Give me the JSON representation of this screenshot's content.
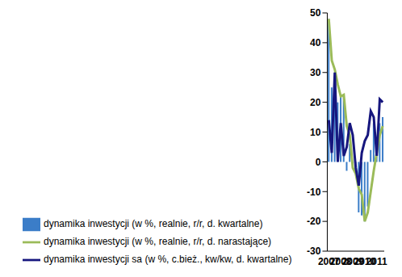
{
  "chart_data": {
    "type": "bar",
    "categories": [
      "2007",
      null,
      null,
      null,
      "2008",
      null,
      null,
      null,
      "2009",
      null,
      null,
      null,
      "2010",
      null,
      null,
      null,
      "2011",
      null,
      null
    ],
    "series": [
      {
        "name": "dynamika inwestycji (w %, realnie, r/r, d. kwartalne)",
        "type": "bar",
        "color": "#3b7dc8",
        "values": [
          48,
          25,
          26,
          20,
          22,
          22.5,
          -3,
          6,
          -1,
          -3,
          -17,
          -18,
          -20,
          -15,
          4,
          13,
          3,
          13,
          15
        ]
      },
      {
        "name": "dynamika inwestycji (w %, realnie, r/r, d. narastające)",
        "type": "line",
        "color": "#9bbb59",
        "values": [
          48,
          34,
          31,
          26,
          22,
          22.5,
          12,
          9,
          -2,
          -4,
          -9,
          -11,
          -20,
          -17,
          -10,
          -3,
          3,
          9,
          12
        ]
      },
      {
        "name": "dynamika inwestycji sa (w %, c.bież., kw/kw, d. kwartalne)",
        "type": "line",
        "color": "#16167e",
        "values": [
          14,
          3,
          30,
          0,
          13,
          2,
          5,
          13,
          9,
          -2,
          -8,
          3,
          7,
          9,
          17,
          15,
          2,
          21,
          20
        ]
      }
    ],
    "ylim": [
      -30,
      50
    ],
    "yticks": [
      -30,
      -20,
      -10,
      0,
      10,
      20,
      30,
      40,
      50
    ],
    "grid": false,
    "legend": "bottom"
  }
}
